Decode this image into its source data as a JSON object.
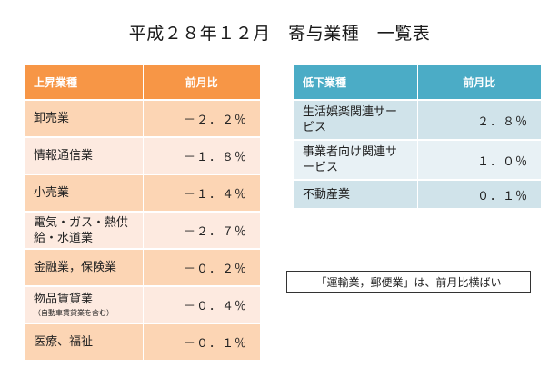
{
  "title": "平成２８年１２月　寄与業種　一覧表",
  "rising": {
    "header_category": "上昇業種",
    "header_value": "前月比",
    "rows": [
      {
        "category": "卸売業",
        "note": "",
        "value": "－２．２％"
      },
      {
        "category": "情報通信業",
        "note": "",
        "value": "－１．８％"
      },
      {
        "category": "小売業",
        "note": "",
        "value": "－１．４％"
      },
      {
        "category": "電気・ガス・熱供給・水道業",
        "note": "",
        "value": "－２．７％"
      },
      {
        "category": "金融業，保険業",
        "note": "",
        "value": "－０．２％"
      },
      {
        "category": "物品賃貸業",
        "note": "（自動車賃貸業を含む）",
        "value": "－０．４％"
      },
      {
        "category": "医療、福祉",
        "note": "",
        "value": "－０．１％"
      }
    ]
  },
  "falling": {
    "header_category": "低下業種",
    "header_value": "前月比",
    "rows": [
      {
        "category": "生活娯楽関連サービス",
        "value": "２．８％"
      },
      {
        "category": "事業者向け関連サービス",
        "value": "１．０％"
      },
      {
        "category": "不動産業",
        "value": "０．１％"
      }
    ]
  },
  "note": "「運輸業，郵便業」は、前月比横ばい"
}
